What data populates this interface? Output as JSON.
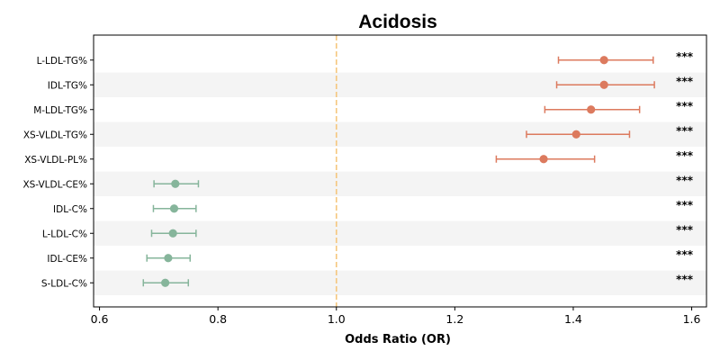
{
  "chart_data": {
    "type": "forest",
    "title": "Acidosis",
    "xlabel": "Odds Ratio (OR)",
    "xlim": [
      0.59,
      1.625
    ],
    "xticks": [
      0.6,
      0.8,
      1.0,
      1.2,
      1.4,
      1.6
    ],
    "xtick_labels": [
      "0.6",
      "0.8",
      "1.0",
      "1.2",
      "1.4",
      "1.6"
    ],
    "reference_line": 1.0,
    "reference_color": "#f5c77e",
    "band_color": "#f4f4f4",
    "colors": {
      "positive": "#dc7a5e",
      "negative": "#86b59b"
    },
    "rows": [
      {
        "label": "L-LDL-TG%",
        "or": 1.452,
        "lo": 1.375,
        "hi": 1.535,
        "sig": "***",
        "direction": "positive"
      },
      {
        "label": "IDL-TG%",
        "or": 1.452,
        "lo": 1.372,
        "hi": 1.537,
        "sig": "***",
        "direction": "positive"
      },
      {
        "label": "M-LDL-TG%",
        "or": 1.43,
        "lo": 1.352,
        "hi": 1.512,
        "sig": "***",
        "direction": "positive"
      },
      {
        "label": "XS-VLDL-TG%",
        "or": 1.405,
        "lo": 1.321,
        "hi": 1.495,
        "sig": "***",
        "direction": "positive"
      },
      {
        "label": "XS-VLDL-PL%",
        "or": 1.35,
        "lo": 1.27,
        "hi": 1.436,
        "sig": "***",
        "direction": "positive"
      },
      {
        "label": "XS-VLDL-CE%",
        "or": 0.728,
        "lo": 0.692,
        "hi": 0.767,
        "sig": "***",
        "direction": "negative"
      },
      {
        "label": "IDL-C%",
        "or": 0.726,
        "lo": 0.691,
        "hi": 0.763,
        "sig": "***",
        "direction": "negative"
      },
      {
        "label": "L-LDL-C%",
        "or": 0.724,
        "lo": 0.688,
        "hi": 0.763,
        "sig": "***",
        "direction": "negative"
      },
      {
        "label": "IDL-CE%",
        "or": 0.716,
        "lo": 0.68,
        "hi": 0.753,
        "sig": "***",
        "direction": "negative"
      },
      {
        "label": "S-LDL-C%",
        "or": 0.711,
        "lo": 0.674,
        "hi": 0.75,
        "sig": "***",
        "direction": "negative"
      }
    ]
  }
}
